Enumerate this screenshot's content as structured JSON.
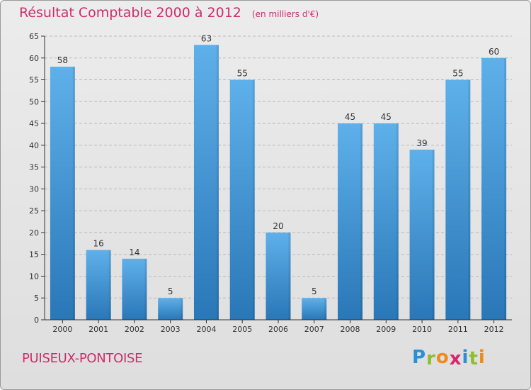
{
  "title": "Résultat Comptable 2000 à 2012",
  "subtitle": "(en milliers d'€)",
  "commune": "PUISEUX-PONTOISE",
  "logo": {
    "text": "Proxiti",
    "letters": [
      {
        "ch": "P",
        "color": "#2a8fd4"
      },
      {
        "ch": "r",
        "color": "#8bbf2d"
      },
      {
        "ch": "o",
        "color": "#f08a1c"
      },
      {
        "ch": "x",
        "color": "#d7266a"
      },
      {
        "ch": "i",
        "color": "#2a8fd4"
      },
      {
        "ch": "t",
        "color": "#8bbf2d"
      },
      {
        "ch": "i",
        "color": "#f08a1c"
      }
    ]
  },
  "colors": {
    "title": "#cc2e6a",
    "bar_top": "#5eb0ea",
    "bar_bottom": "#2a77b7",
    "grid": "#b9b9b9",
    "axis": "#333333"
  },
  "chart_data": {
    "type": "bar",
    "categories": [
      "2000",
      "2001",
      "2002",
      "2003",
      "2004",
      "2005",
      "2006",
      "2007",
      "2008",
      "2009",
      "2010",
      "2011",
      "2012"
    ],
    "values": [
      58,
      16,
      14,
      5,
      63,
      55,
      20,
      5,
      45,
      45,
      39,
      55,
      60
    ],
    "data_labels": [
      "58",
      "16",
      "14",
      "5",
      "63",
      "55",
      "20",
      "5",
      "45",
      "45",
      "39",
      "55",
      "60"
    ],
    "ylim": [
      0,
      65
    ],
    "yticks": [
      0,
      5,
      10,
      15,
      20,
      25,
      30,
      35,
      40,
      45,
      50,
      55,
      60,
      65
    ],
    "grid": true,
    "xlabel": "",
    "ylabel": ""
  }
}
